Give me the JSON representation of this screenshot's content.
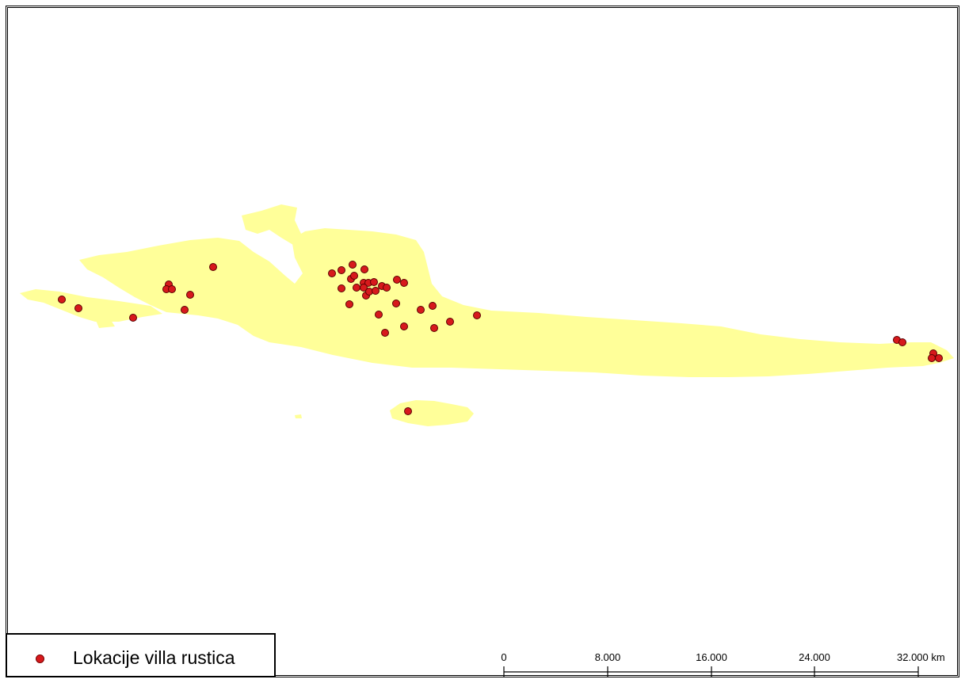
{
  "map": {
    "land_color": "#ffff99",
    "point_color": "#d7191c",
    "point_outline": "#5a0000"
  },
  "legend": {
    "label": "Lokacije villa rustica",
    "symbol": "red-dot"
  },
  "scale_bar": {
    "labels": [
      "0",
      "8.000",
      "16.000",
      "24.000",
      "32.000 km"
    ]
  }
}
